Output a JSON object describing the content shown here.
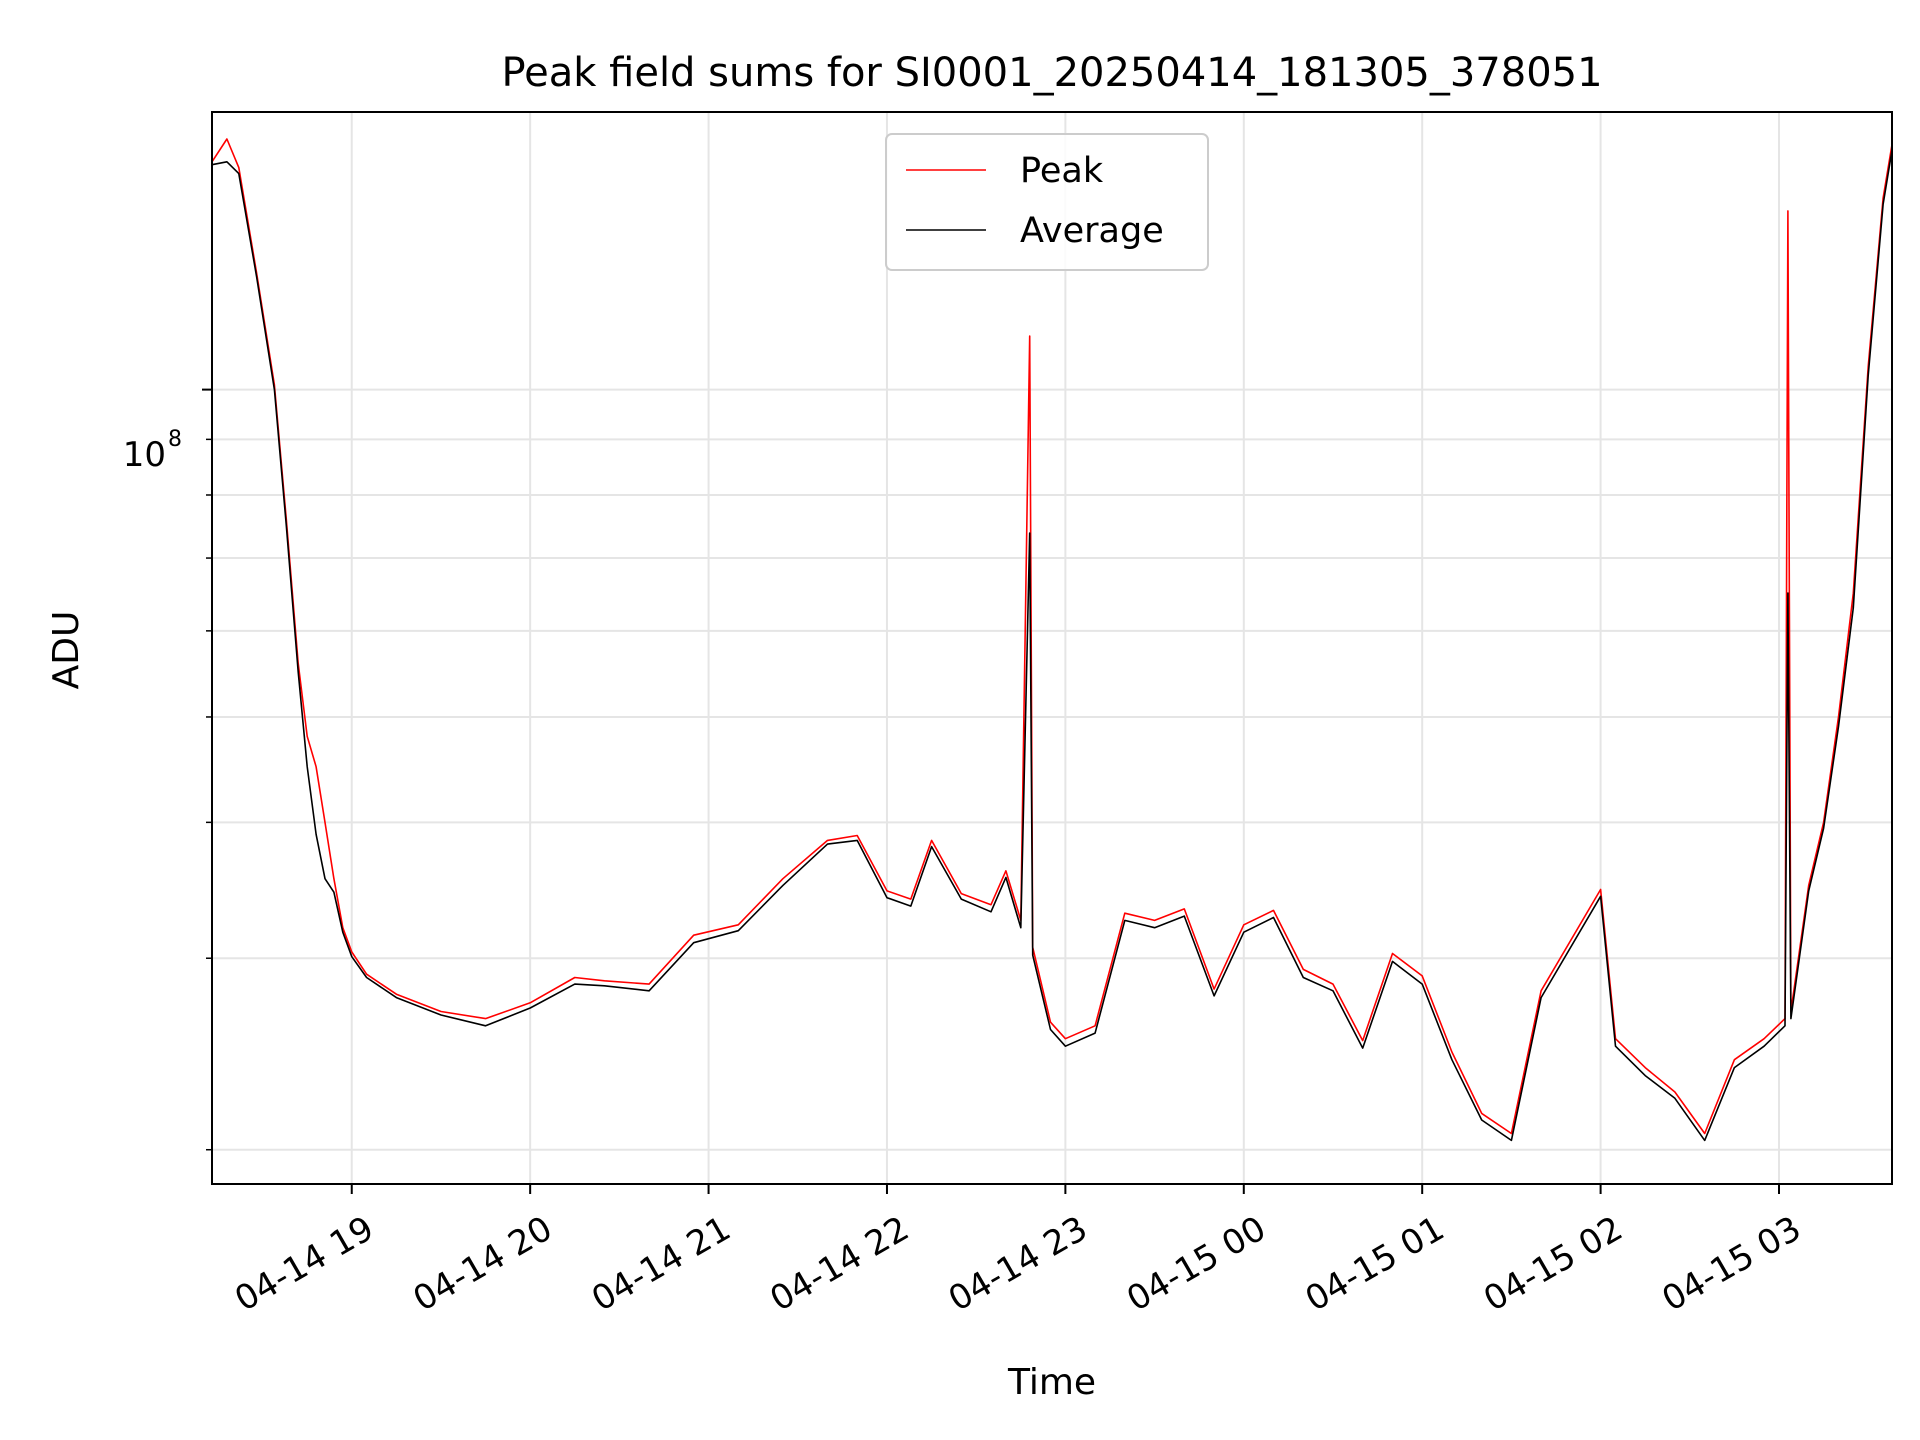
{
  "chart_data": {
    "type": "line",
    "title": "Peak field sums for SI0001_20250414_181305_378051",
    "xlabel": "Time",
    "ylabel": "ADU",
    "yscale": "log",
    "y_tick_labels": [
      "10",
      "8"
    ],
    "x_ticks": [
      {
        "time": "2025-04-14 19:00",
        "label": "04-14 19"
      },
      {
        "time": "2025-04-14 20:00",
        "label": "04-14 20"
      },
      {
        "time": "2025-04-14 21:00",
        "label": "04-14 21"
      },
      {
        "time": "2025-04-14 22:00",
        "label": "04-14 22"
      },
      {
        "time": "2025-04-14 23:00",
        "label": "04-14 23"
      },
      {
        "time": "2025-04-15 00:00",
        "label": "04-15 00"
      },
      {
        "time": "2025-04-15 01:00",
        "label": "04-15 01"
      },
      {
        "time": "2025-04-15 02:00",
        "label": "04-15 02"
      },
      {
        "time": "2025-04-15 03:00",
        "label": "04-15 03"
      }
    ],
    "xlim": [
      "2025-04-14 18:13",
      "2025-04-15 03:38"
    ],
    "ylim": [
      18600000,
      180000000
    ],
    "grid": true,
    "legend": {
      "placement": "upper center",
      "entries": [
        "Peak",
        "Average"
      ]
    },
    "series": [
      {
        "name": "Peak",
        "color": "#ff0000",
        "points": [
          [
            "2025-04-14 18:13",
            162000000
          ],
          [
            "2025-04-14 18:18",
            170000000
          ],
          [
            "2025-04-14 18:22",
            160000000
          ],
          [
            "2025-04-14 18:28",
            128000000
          ],
          [
            "2025-04-14 18:34",
            101000000
          ],
          [
            "2025-04-14 18:38",
            76000000
          ],
          [
            "2025-04-14 18:42",
            56000000
          ],
          [
            "2025-04-14 18:45",
            48000000
          ],
          [
            "2025-04-14 18:48",
            45000000
          ],
          [
            "2025-04-14 18:51",
            40000000
          ],
          [
            "2025-04-14 18:54",
            35500000
          ],
          [
            "2025-04-14 18:57",
            32000000
          ],
          [
            "2025-04-14 19:00",
            30400000
          ],
          [
            "2025-04-14 19:05",
            29000000
          ],
          [
            "2025-04-14 19:15",
            27800000
          ],
          [
            "2025-04-14 19:30",
            26800000
          ],
          [
            "2025-04-14 19:45",
            26400000
          ],
          [
            "2025-04-14 20:00",
            27300000
          ],
          [
            "2025-04-14 20:15",
            28800000
          ],
          [
            "2025-04-14 20:25",
            28600000
          ],
          [
            "2025-04-14 20:40",
            28400000
          ],
          [
            "2025-04-14 20:55",
            31500000
          ],
          [
            "2025-04-14 21:10",
            32200000
          ],
          [
            "2025-04-14 21:25",
            35500000
          ],
          [
            "2025-04-14 21:40",
            38500000
          ],
          [
            "2025-04-14 21:50",
            38900000
          ],
          [
            "2025-04-14 22:00",
            34600000
          ],
          [
            "2025-04-14 22:08",
            34000000
          ],
          [
            "2025-04-14 22:15",
            38500000
          ],
          [
            "2025-04-14 22:25",
            34400000
          ],
          [
            "2025-04-14 22:35",
            33600000
          ],
          [
            "2025-04-14 22:40",
            36100000
          ],
          [
            "2025-04-14 22:45",
            32500000
          ],
          [
            "2025-04-14 22:48",
            112000000
          ],
          [
            "2025-04-14 22:49",
            30700000
          ],
          [
            "2025-04-14 22:55",
            26200000
          ],
          [
            "2025-04-14 23:00",
            25300000
          ],
          [
            "2025-04-14 23:10",
            26000000
          ],
          [
            "2025-04-14 23:20",
            33000000
          ],
          [
            "2025-04-14 23:30",
            32500000
          ],
          [
            "2025-04-14 23:40",
            33300000
          ],
          [
            "2025-04-14 23:50",
            28100000
          ],
          [
            "2025-04-15 00:00",
            32200000
          ],
          [
            "2025-04-15 00:10",
            33200000
          ],
          [
            "2025-04-15 00:20",
            29300000
          ],
          [
            "2025-04-15 00:30",
            28400000
          ],
          [
            "2025-04-15 00:40",
            25200000
          ],
          [
            "2025-04-15 00:50",
            30300000
          ],
          [
            "2025-04-15 01:00",
            28900000
          ],
          [
            "2025-04-15 01:10",
            24600000
          ],
          [
            "2025-04-15 01:20",
            21600000
          ],
          [
            "2025-04-15 01:30",
            20700000
          ],
          [
            "2025-04-15 01:40",
            28000000
          ],
          [
            "2025-04-15 02:00",
            34700000
          ],
          [
            "2025-04-15 02:05",
            25300000
          ],
          [
            "2025-04-15 02:15",
            23800000
          ],
          [
            "2025-04-15 02:25",
            22600000
          ],
          [
            "2025-04-15 02:35",
            20700000
          ],
          [
            "2025-04-15 02:45",
            24200000
          ],
          [
            "2025-04-15 02:55",
            25300000
          ],
          [
            "2025-04-15 03:02",
            26400000
          ],
          [
            "2025-04-15 03:03",
            146000000
          ],
          [
            "2025-04-15 03:04",
            26800000
          ],
          [
            "2025-04-15 03:10",
            35000000
          ],
          [
            "2025-04-15 03:15",
            40000000
          ],
          [
            "2025-04-15 03:20",
            50000000
          ],
          [
            "2025-04-15 03:25",
            65000000
          ],
          [
            "2025-04-15 03:30",
            105000000
          ],
          [
            "2025-04-15 03:35",
            150000000
          ],
          [
            "2025-04-15 03:38",
            168000000
          ]
        ]
      },
      {
        "name": "Average",
        "color": "#000000",
        "points": [
          [
            "2025-04-14 18:13",
            161000000
          ],
          [
            "2025-04-14 18:18",
            162000000
          ],
          [
            "2025-04-14 18:22",
            158000000
          ],
          [
            "2025-04-14 18:28",
            127000000
          ],
          [
            "2025-04-14 18:34",
            100000000
          ],
          [
            "2025-04-14 18:38",
            75000000
          ],
          [
            "2025-04-14 18:42",
            55000000
          ],
          [
            "2025-04-14 18:45",
            45000000
          ],
          [
            "2025-04-14 18:48",
            39000000
          ],
          [
            "2025-04-14 18:51",
            35500000
          ],
          [
            "2025-04-14 18:54",
            34500000
          ],
          [
            "2025-04-14 18:57",
            31700000
          ],
          [
            "2025-04-14 19:00",
            30100000
          ],
          [
            "2025-04-14 19:05",
            28800000
          ],
          [
            "2025-04-14 19:15",
            27600000
          ],
          [
            "2025-04-14 19:30",
            26600000
          ],
          [
            "2025-04-14 19:45",
            26000000
          ],
          [
            "2025-04-14 20:00",
            27000000
          ],
          [
            "2025-04-14 20:15",
            28400000
          ],
          [
            "2025-04-14 20:25",
            28300000
          ],
          [
            "2025-04-14 20:40",
            28000000
          ],
          [
            "2025-04-14 20:55",
            31000000
          ],
          [
            "2025-04-14 21:10",
            31800000
          ],
          [
            "2025-04-14 21:25",
            35000000
          ],
          [
            "2025-04-14 21:40",
            38200000
          ],
          [
            "2025-04-14 21:50",
            38500000
          ],
          [
            "2025-04-14 22:00",
            34100000
          ],
          [
            "2025-04-14 22:08",
            33500000
          ],
          [
            "2025-04-14 22:15",
            38000000
          ],
          [
            "2025-04-14 22:25",
            34000000
          ],
          [
            "2025-04-14 22:35",
            33100000
          ],
          [
            "2025-04-14 22:40",
            35600000
          ],
          [
            "2025-04-14 22:45",
            32000000
          ],
          [
            "2025-04-14 22:48",
            73800000
          ],
          [
            "2025-04-14 22:49",
            30200000
          ],
          [
            "2025-04-14 22:55",
            25800000
          ],
          [
            "2025-04-14 23:00",
            24900000
          ],
          [
            "2025-04-14 23:10",
            25600000
          ],
          [
            "2025-04-14 23:20",
            32500000
          ],
          [
            "2025-04-14 23:30",
            32000000
          ],
          [
            "2025-04-14 23:40",
            32800000
          ],
          [
            "2025-04-14 23:50",
            27700000
          ],
          [
            "2025-04-15 00:00",
            31700000
          ],
          [
            "2025-04-15 00:10",
            32700000
          ],
          [
            "2025-04-15 00:20",
            28800000
          ],
          [
            "2025-04-15 00:30",
            28000000
          ],
          [
            "2025-04-15 00:40",
            24800000
          ],
          [
            "2025-04-15 00:50",
            29800000
          ],
          [
            "2025-04-15 01:00",
            28400000
          ],
          [
            "2025-04-15 01:10",
            24200000
          ],
          [
            "2025-04-15 01:20",
            21300000
          ],
          [
            "2025-04-15 01:30",
            20400000
          ],
          [
            "2025-04-15 01:40",
            27600000
          ],
          [
            "2025-04-15 02:00",
            34200000
          ],
          [
            "2025-04-15 02:05",
            24900000
          ],
          [
            "2025-04-15 02:15",
            23400000
          ],
          [
            "2025-04-15 02:25",
            22300000
          ],
          [
            "2025-04-15 02:35",
            20400000
          ],
          [
            "2025-04-15 02:45",
            23800000
          ],
          [
            "2025-04-15 02:55",
            24900000
          ],
          [
            "2025-04-15 03:02",
            26000000
          ],
          [
            "2025-04-15 03:03",
            65000000
          ],
          [
            "2025-04-15 03:04",
            26400000
          ],
          [
            "2025-04-15 03:10",
            34600000
          ],
          [
            "2025-04-15 03:15",
            39500000
          ],
          [
            "2025-04-15 03:20",
            49000000
          ],
          [
            "2025-04-15 03:25",
            63000000
          ],
          [
            "2025-04-15 03:30",
            103000000
          ],
          [
            "2025-04-15 03:35",
            148000000
          ],
          [
            "2025-04-15 03:38",
            166000000
          ]
        ]
      }
    ]
  }
}
